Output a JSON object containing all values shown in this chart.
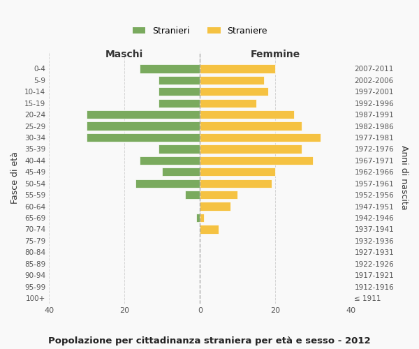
{
  "age_groups": [
    "100+",
    "95-99",
    "90-94",
    "85-89",
    "80-84",
    "75-79",
    "70-74",
    "65-69",
    "60-64",
    "55-59",
    "50-54",
    "45-49",
    "40-44",
    "35-39",
    "30-34",
    "25-29",
    "20-24",
    "15-19",
    "10-14",
    "5-9",
    "0-4"
  ],
  "birth_years": [
    "≤ 1911",
    "1912-1916",
    "1917-1921",
    "1922-1926",
    "1927-1931",
    "1932-1936",
    "1937-1941",
    "1942-1946",
    "1947-1951",
    "1952-1956",
    "1957-1961",
    "1962-1966",
    "1967-1971",
    "1972-1976",
    "1977-1981",
    "1982-1986",
    "1987-1991",
    "1992-1996",
    "1997-2001",
    "2002-2006",
    "2007-2011"
  ],
  "maschi": [
    0,
    0,
    0,
    0,
    0,
    0,
    0,
    1,
    0,
    4,
    17,
    10,
    16,
    11,
    30,
    30,
    30,
    11,
    11,
    11,
    16
  ],
  "femmine": [
    0,
    0,
    0,
    0,
    0,
    0,
    5,
    1,
    8,
    10,
    19,
    20,
    30,
    27,
    32,
    27,
    25,
    15,
    18,
    17,
    20
  ],
  "male_color": "#7aaa5e",
  "female_color": "#f5c242",
  "title": "Popolazione per cittadinanza straniera per età e sesso - 2012",
  "xlabel_left": "Maschi",
  "xlabel_right": "Femmine",
  "ylabel_left": "Fasce di età",
  "ylabel_right": "Anni di nascita",
  "legend_male": "Stranieri",
  "legend_female": "Straniere",
  "xlim": 40,
  "background_color": "#f9f9f9",
  "grid_color": "#cccccc"
}
